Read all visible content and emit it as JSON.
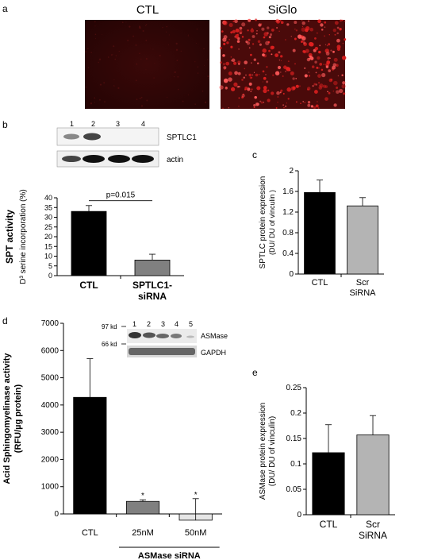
{
  "figure": {
    "panels": {
      "a": {
        "letter": "a",
        "images": [
          {
            "label": "CTL"
          },
          {
            "label": "SiGlo"
          }
        ]
      },
      "b": {
        "letter": "b",
        "blot": {
          "lanes": [
            "1",
            "2",
            "3",
            "4"
          ],
          "bands": [
            "SPTLC1",
            "actin"
          ]
        }
      },
      "c": {
        "letter": "c"
      },
      "d": {
        "letter": "d",
        "blot": {
          "lanes": [
            "1",
            "2",
            "3",
            "4",
            "5"
          ],
          "bands": [
            "ASMase",
            "GAPDH"
          ],
          "markers": [
            "97 kd",
            "66 kd"
          ]
        },
        "group_label": "ASMase siRNA"
      },
      "e": {
        "letter": "e"
      }
    },
    "colors": {
      "black_bar": "#000000",
      "dark_gray_bar": "#808080",
      "light_gray_bar": "#b4b4b4",
      "lightest_bar": "#e6e6e6",
      "fluorescence_red": "#e02020"
    }
  },
  "chart_data": [
    {
      "id": "spt",
      "type": "bar",
      "categories": [
        "CTL",
        "SPTLC1-\nsiRNA"
      ],
      "values": [
        33,
        8
      ],
      "errors": [
        3,
        3
      ],
      "bar_colors": [
        "#000000",
        "#808080"
      ],
      "ylabel": "SPT activity",
      "ylabel2": "D³ serine incorporation (%)",
      "ylim": [
        0,
        40
      ],
      "yticks": [
        "0",
        "5",
        "10",
        "15",
        "20",
        "25",
        "30",
        "35",
        "40"
      ],
      "annotation": "p=0.015"
    },
    {
      "id": "sptlc-expr",
      "type": "bar",
      "categories": [
        "CTL",
        "Scr\nSiRNA"
      ],
      "values": [
        1.58,
        1.32
      ],
      "errors": [
        0.24,
        0.16
      ],
      "bar_colors": [
        "#000000",
        "#b4b4b4"
      ],
      "ylabel": "SPTLC protein expression",
      "ylabel2": "(DU/ DU of vinculin )",
      "ylim": [
        0,
        2
      ],
      "yticks": [
        "0",
        "0.4",
        "0.8",
        "1.2",
        "1.6",
        "2"
      ]
    },
    {
      "id": "asmase-activity",
      "type": "bar",
      "categories": [
        "CTL",
        "25nM",
        "50nM"
      ],
      "values": [
        4280,
        460,
        -230
      ],
      "errors": [
        1420,
        60,
        790
      ],
      "bar_colors": [
        "#000000",
        "#808080",
        "#e6e6e6"
      ],
      "ylabel": "Acid Sphingomyelinase activity",
      "ylabel2": "(RFU/µg protein)",
      "ylim": [
        0,
        7000
      ],
      "yticks": [
        "0",
        "1000",
        "2000",
        "3000",
        "4000",
        "5000",
        "6000",
        "7000"
      ],
      "markers": [
        "*",
        "*"
      ]
    },
    {
      "id": "asmase-expr",
      "type": "bar",
      "categories": [
        "CTL",
        "Scr\nSiRNA"
      ],
      "values": [
        0.122,
        0.157
      ],
      "errors": [
        0.055,
        0.038
      ],
      "bar_colors": [
        "#000000",
        "#b4b4b4"
      ],
      "ylabel": "ASMase protein expression",
      "ylabel2": "(DU/ DU of vinculin)",
      "ylim": [
        0,
        0.25
      ],
      "yticks": [
        "0",
        "0.05",
        "0.1",
        "0.15",
        "0.2",
        "0.25"
      ]
    }
  ]
}
